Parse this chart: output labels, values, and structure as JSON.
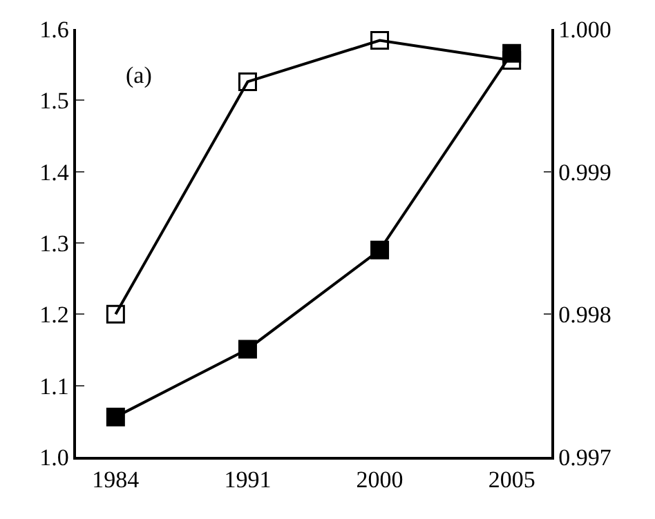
{
  "chart_data": {
    "type": "line",
    "categories": [
      "1984",
      "1991",
      "2000",
      "2005"
    ],
    "series": [
      {
        "color": "#000000",
        "values": [
          1.056,
          1.151,
          1.29,
          1.566
        ],
        "marker": "square"
      },
      {
        "color": "#000000",
        "values": [
          0.998,
          0.99963,
          0.99992,
          0.99978
        ],
        "marker": "square-open",
        "axis": "y2"
      }
    ],
    "ylim": [
      1.0,
      1.6
    ],
    "yticks": [
      {
        "value": 1.0,
        "label": "1.0"
      },
      1.1,
      1.2,
      1.3,
      1.4,
      1.5,
      1.6
    ],
    "y2lim": [
      0.997,
      1.0
    ],
    "y2ticks": [
      0.997,
      0.998,
      0.999,
      {
        "value": 1.0,
        "label": "1.000"
      }
    ],
    "annotations": [
      "(a)"
    ],
    "line_style": "solid"
  }
}
